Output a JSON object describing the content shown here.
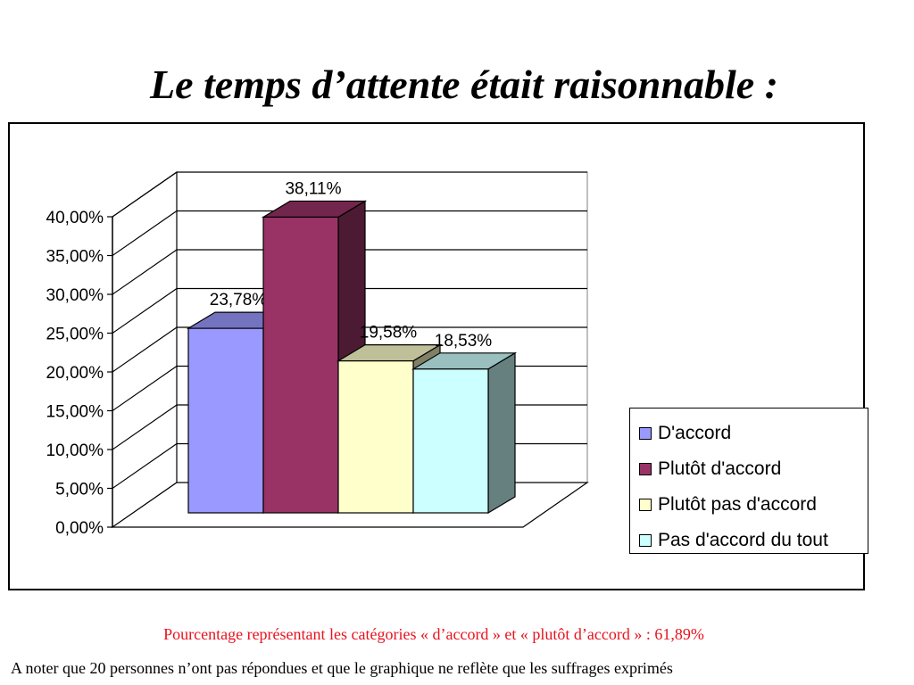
{
  "title": "Le temps d’attente était raisonnable :",
  "chart_data": {
    "type": "bar",
    "style": "3d-clustered",
    "categories": [
      "D'accord",
      "Plutôt d'accord",
      "Plutôt pas d'accord",
      "Pas d'accord du tout"
    ],
    "values": [
      23.78,
      38.11,
      19.58,
      18.53
    ],
    "value_labels": [
      "23,78%",
      "38,11%",
      "19,58%",
      "18,53%"
    ],
    "colors": [
      "#9999ff",
      "#993366",
      "#ffffcc",
      "#ccffff"
    ],
    "y_ticks": [
      "0,00%",
      "5,00%",
      "10,00%",
      "15,00%",
      "20,00%",
      "25,00%",
      "30,00%",
      "35,00%",
      "40,00%"
    ],
    "ylim": [
      0,
      40
    ],
    "grid": true,
    "legend": {
      "placement": "right",
      "entries": [
        "D'accord",
        "Plutôt d'accord",
        "Plutôt pas d'accord",
        "Pas d'accord du tout"
      ]
    }
  },
  "notes": {
    "summary": "Pourcentage représentant les catégories « d’accord » et « plutôt d’accord » : 61,89%",
    "footnote": "A noter que 20 personnes n’ont pas répondues et que le graphique ne reflète que les suffrages exprimés"
  }
}
